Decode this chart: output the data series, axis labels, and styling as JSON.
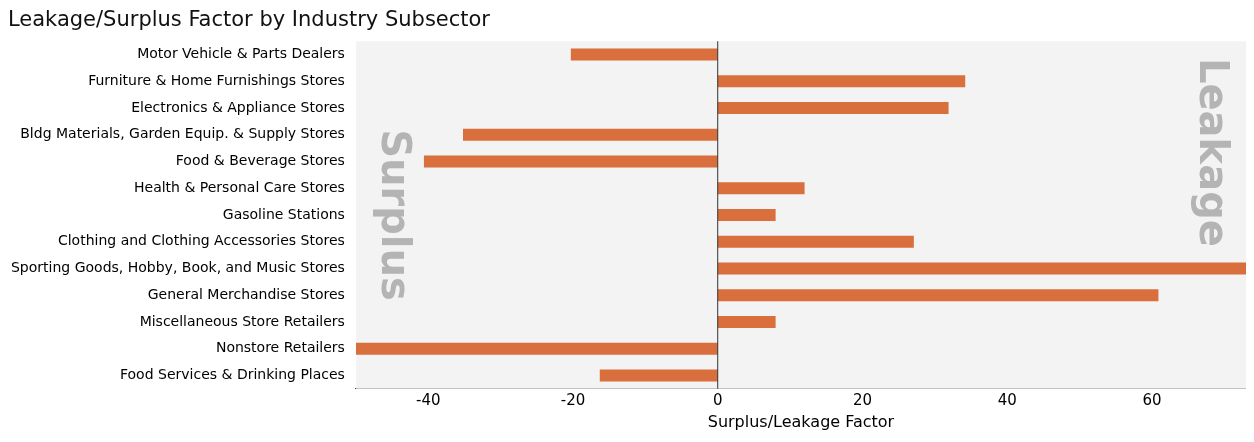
{
  "chart_data": {
    "type": "bar",
    "orientation": "horizontal",
    "title": "Leakage/Surplus Factor by Industry Subsector",
    "xlabel": "Surplus/Leakage Factor",
    "categories": [
      "Motor Vehicle & Parts Dealers",
      "Furniture & Home Furnishings Stores",
      "Electronics & Appliance Stores",
      "Bldg Materials, Garden Equip. & Supply Stores",
      "Food & Beverage Stores",
      "Health & Personal Care Stores",
      "Gasoline Stations",
      "Clothing and Clothing Accessories Stores",
      "Sporting Goods, Hobby, Book, and Music Stores",
      "General Merchandise Stores",
      "Miscellaneous Store Retailers",
      "Nonstore Retailers",
      "Food Services & Drinking Places"
    ],
    "values": [
      -20.3,
      34.2,
      31.9,
      -35.2,
      -40.6,
      12,
      8,
      27.1,
      73,
      60.9,
      8,
      -50,
      -16.3
    ],
    "color": "#d86f3c",
    "xlim": [
      -50,
      73
    ],
    "xticks": [
      -40,
      -20,
      0,
      20,
      40,
      60
    ],
    "ref_lines": [
      {
        "axis": "x",
        "value": 0,
        "color": "#333333"
      }
    ],
    "annotations": [
      "Surplus",
      "Leakage"
    ],
    "grid": false,
    "legend": false
  }
}
